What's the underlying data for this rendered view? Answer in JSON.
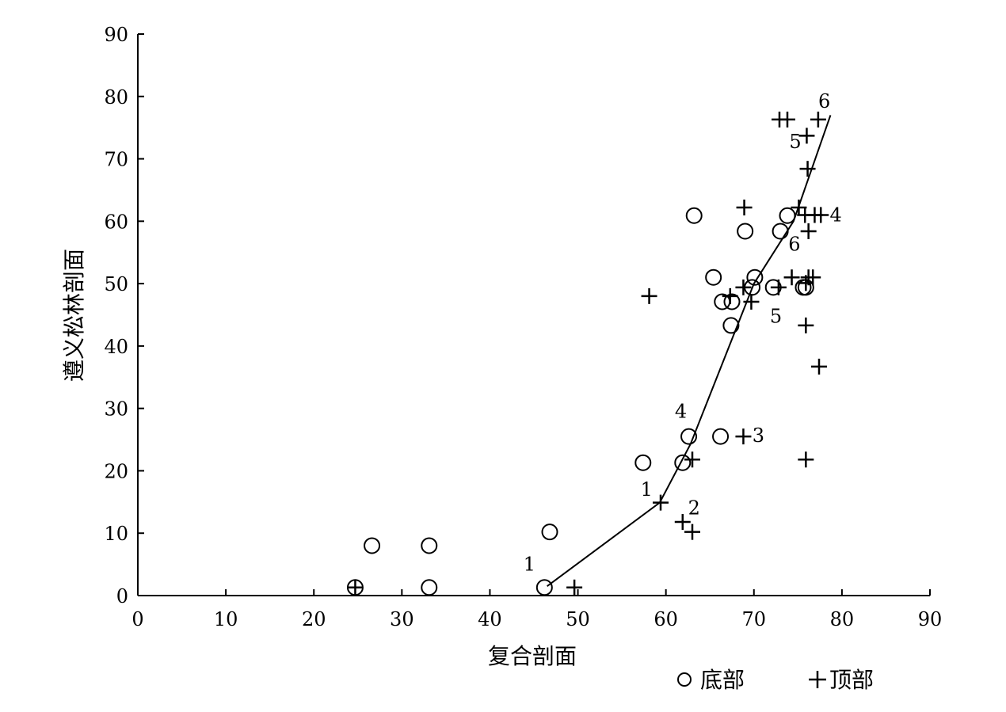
{
  "chart_data": {
    "type": "scatter",
    "xlabel": "复合剖面",
    "ylabel": "遵义松林剖面",
    "xlim": [
      0,
      90
    ],
    "ylim": [
      0,
      90
    ],
    "xticks": [
      0,
      10,
      20,
      30,
      40,
      50,
      60,
      70,
      80,
      90
    ],
    "yticks": [
      0,
      10,
      20,
      30,
      40,
      50,
      60,
      70,
      80,
      90
    ],
    "grid": false,
    "legend": {
      "placement": "bottom-right",
      "entries": [
        "底部",
        "顶部"
      ]
    },
    "series": [
      {
        "name": "底部",
        "marker": "circle",
        "points": [
          [
            24.7,
            1.3
          ],
          [
            26.6,
            8.0
          ],
          [
            33.1,
            8.0
          ],
          [
            33.1,
            1.3
          ],
          [
            46.2,
            1.3
          ],
          [
            46.8,
            10.2
          ],
          [
            57.4,
            21.3
          ],
          [
            61.9,
            21.3
          ],
          [
            62.6,
            25.5
          ],
          [
            66.2,
            25.5
          ],
          [
            63.2,
            60.9
          ],
          [
            65.4,
            51.0
          ],
          [
            66.4,
            47.1
          ],
          [
            67.5,
            47.1
          ],
          [
            67.4,
            43.3
          ],
          [
            69.0,
            58.4
          ],
          [
            69.8,
            49.4
          ],
          [
            70.1,
            51.0
          ],
          [
            72.2,
            49.4
          ],
          [
            73.0,
            58.4
          ],
          [
            73.8,
            60.9
          ],
          [
            75.6,
            49.4
          ],
          [
            75.9,
            49.4
          ]
        ]
      },
      {
        "name": "顶部",
        "marker": "plus",
        "points": [
          [
            24.7,
            1.3
          ],
          [
            49.6,
            1.3
          ],
          [
            58.1,
            48.0
          ],
          [
            59.4,
            14.9
          ],
          [
            61.9,
            11.8
          ],
          [
            63.0,
            10.2
          ],
          [
            63.0,
            21.8
          ],
          [
            68.8,
            25.5
          ],
          [
            67.3,
            48.0
          ],
          [
            68.8,
            49.4
          ],
          [
            68.9,
            62.2
          ],
          [
            69.7,
            47.1
          ],
          [
            72.8,
            49.4
          ],
          [
            72.9,
            76.3
          ],
          [
            73.8,
            76.3
          ],
          [
            74.3,
            51.0
          ],
          [
            75.1,
            62.2
          ],
          [
            75.8,
            61.0
          ],
          [
            75.9,
            50.1
          ],
          [
            75.9,
            43.3
          ],
          [
            75.9,
            21.8
          ],
          [
            76.0,
            73.7
          ],
          [
            76.1,
            68.4
          ],
          [
            76.2,
            58.4
          ],
          [
            76.2,
            51.0
          ],
          [
            76.7,
            51.0
          ],
          [
            76.9,
            61.0
          ],
          [
            77.3,
            76.3
          ],
          [
            77.4,
            36.7
          ],
          [
            77.6,
            61.0
          ]
        ]
      },
      {
        "name": "",
        "marker": "line",
        "points": [
          [
            46.5,
            1.5
          ],
          [
            59.3,
            14.9
          ],
          [
            62.8,
            24.3
          ],
          [
            70.0,
            50.0
          ],
          [
            74.5,
            60.0
          ],
          [
            78.7,
            77.0
          ]
        ]
      }
    ],
    "annotations": [
      {
        "text": "1",
        "x": 44.5,
        "y": 4.0
      },
      {
        "text": "1",
        "x": 57.8,
        "y": 16.0
      },
      {
        "text": "2",
        "x": 63.2,
        "y": 13.0
      },
      {
        "text": "4",
        "x": 61.7,
        "y": 28.5
      },
      {
        "text": "3",
        "x": 70.5,
        "y": 24.6
      },
      {
        "text": "5",
        "x": 72.5,
        "y": 43.7
      },
      {
        "text": "6",
        "x": 74.6,
        "y": 55.3
      },
      {
        "text": "4",
        "x": 79.3,
        "y": 60.0
      },
      {
        "text": "5",
        "x": 74.7,
        "y": 71.7
      },
      {
        "text": "6",
        "x": 78.0,
        "y": 78.2
      }
    ]
  }
}
